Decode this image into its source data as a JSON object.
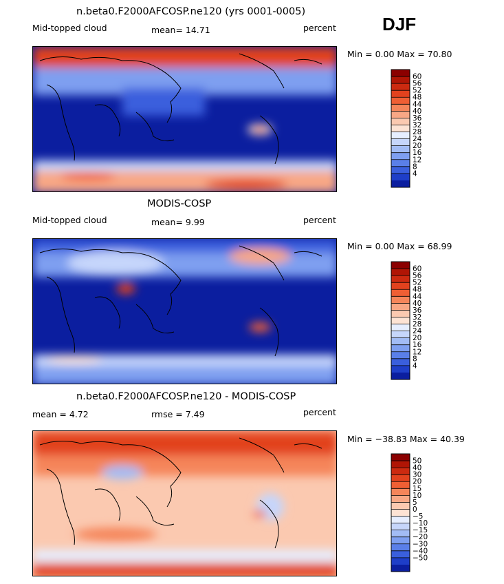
{
  "season": "DJF",
  "panels": [
    {
      "title": "n.beta0.F2000AFCOSP.ne120 (yrs 0001-0005)",
      "left_label": "Mid-topped cloud",
      "mid_label": "mean=   14.71",
      "right_label": "percent",
      "minmax": "Min =    0.00 Max =   70.80"
    },
    {
      "title": "MODIS-COSP",
      "left_label": "Mid-topped cloud",
      "mid_label": "mean=    9.99",
      "right_label": "percent",
      "minmax": "Min =    0.00 Max =   68.99"
    },
    {
      "title": "n.beta0.F2000AFCOSP.ne120 - MODIS-COSP",
      "left_label": "mean =    4.72",
      "mid_label": "rmse =    7.49",
      "right_label": "percent",
      "minmax": "Min = −38.83 Max =  40.39"
    }
  ],
  "chart_data": [
    {
      "type": "heatmap",
      "title": "n.beta0.F2000AFCOSP.ne120 (yrs 0001-0005)",
      "variable": "Mid-topped cloud",
      "units": "percent",
      "mean": 14.71,
      "min": 0.0,
      "max": 70.8,
      "colorbar_levels": [
        "60",
        "56",
        "52",
        "48",
        "44",
        "40",
        "36",
        "32",
        "28",
        "24",
        "20",
        "16",
        "12",
        "8",
        "4"
      ],
      "colorbar_colors": [
        "#8b0000",
        "#b01505",
        "#cc2a10",
        "#e2421e",
        "#ef5f34",
        "#f5855a",
        "#f8a785",
        "#fbc9b0",
        "#fde3d4",
        "#e6eeff",
        "#c6d6fb",
        "#a2bcf5",
        "#7e9ff0",
        "#5a7fe8",
        "#3a5fdd",
        "#1e3ec8",
        "#0b1e9f"
      ]
    },
    {
      "type": "heatmap",
      "title": "MODIS-COSP",
      "variable": "Mid-topped cloud",
      "units": "percent",
      "mean": 9.99,
      "min": 0.0,
      "max": 68.99,
      "colorbar_levels": [
        "60",
        "56",
        "52",
        "48",
        "44",
        "40",
        "36",
        "32",
        "28",
        "24",
        "20",
        "16",
        "12",
        "8",
        "4"
      ],
      "colorbar_colors": [
        "#8b0000",
        "#b01505",
        "#cc2a10",
        "#e2421e",
        "#ef5f34",
        "#f5855a",
        "#f8a785",
        "#fbc9b0",
        "#fde3d4",
        "#e6eeff",
        "#c6d6fb",
        "#a2bcf5",
        "#7e9ff0",
        "#5a7fe8",
        "#3a5fdd",
        "#1e3ec8",
        "#0b1e9f"
      ]
    },
    {
      "type": "heatmap",
      "title": "n.beta0.F2000AFCOSP.ne120 - MODIS-COSP",
      "variable": "Mid-topped cloud difference",
      "units": "percent",
      "mean": 4.72,
      "rmse": 7.49,
      "min": -38.83,
      "max": 40.39,
      "colorbar_levels": [
        "50",
        "40",
        "30",
        "20",
        "15",
        "10",
        "5",
        "0",
        "−5",
        "−10",
        "−15",
        "−20",
        "−30",
        "−40",
        "−50"
      ],
      "colorbar_colors": [
        "#8b0000",
        "#b01505",
        "#cc2a10",
        "#e2421e",
        "#ef5f34",
        "#f5855a",
        "#f8a785",
        "#fbc9b0",
        "#fde3d4",
        "#e6eeff",
        "#c6d6fb",
        "#a2bcf5",
        "#7e9ff0",
        "#5a7fe8",
        "#3a5fdd",
        "#1e3ec8",
        "#0b1e9f"
      ]
    }
  ]
}
